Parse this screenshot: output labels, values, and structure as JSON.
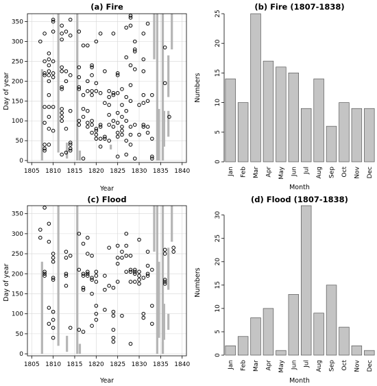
{
  "chart_data": [
    {
      "id": "fire-scatter",
      "type": "scatter",
      "title": "(a) Fire",
      "xlabel": "Year",
      "ylabel": "Day of year",
      "xlim": [
        1804,
        1841
      ],
      "ylim": [
        -5,
        370
      ],
      "xticks": [
        1805,
        1810,
        1815,
        1820,
        1825,
        1830,
        1835,
        1840
      ],
      "yticks": [
        0,
        50,
        100,
        150,
        200,
        250,
        300,
        350
      ],
      "grid": true,
      "points": [
        [
          1807,
          300
        ],
        [
          1808,
          320
        ],
        [
          1808,
          135
        ],
        [
          1808,
          95
        ],
        [
          1808,
          30
        ],
        [
          1808,
          25
        ],
        [
          1808,
          40
        ],
        [
          1809,
          270
        ],
        [
          1809,
          255
        ],
        [
          1809,
          240
        ],
        [
          1809,
          225
        ],
        [
          1809,
          215
        ],
        [
          1809,
          200
        ],
        [
          1809,
          165
        ],
        [
          1809,
          135
        ],
        [
          1809,
          110
        ],
        [
          1809,
          80
        ],
        [
          1809,
          40
        ],
        [
          1808,
          215
        ],
        [
          1808,
          250
        ],
        [
          1808,
          220
        ],
        [
          1810,
          355
        ],
        [
          1810,
          350
        ],
        [
          1810,
          325
        ],
        [
          1810,
          250
        ],
        [
          1810,
          220
        ],
        [
          1810,
          210
        ],
        [
          1810,
          135
        ],
        [
          1810,
          75
        ],
        [
          1812,
          340
        ],
        [
          1812,
          320
        ],
        [
          1812,
          305
        ],
        [
          1812,
          235
        ],
        [
          1812,
          225
        ],
        [
          1812,
          185
        ],
        [
          1812,
          180
        ],
        [
          1812,
          130
        ],
        [
          1812,
          120
        ],
        [
          1812,
          110
        ],
        [
          1812,
          100
        ],
        [
          1812,
          15
        ],
        [
          1813,
          325
        ],
        [
          1813,
          225
        ],
        [
          1813,
          200
        ],
        [
          1813,
          80
        ],
        [
          1813,
          20
        ],
        [
          1814,
          355
        ],
        [
          1814,
          315
        ],
        [
          1814,
          215
        ],
        [
          1814,
          125
        ],
        [
          1814,
          45
        ],
        [
          1814,
          40
        ],
        [
          1814,
          30
        ],
        [
          1814,
          25
        ],
        [
          1816,
          325
        ],
        [
          1816,
          235
        ],
        [
          1816,
          210
        ],
        [
          1816,
          185
        ],
        [
          1816,
          180
        ],
        [
          1816,
          100
        ],
        [
          1816,
          90
        ],
        [
          1817,
          290
        ],
        [
          1817,
          165
        ],
        [
          1817,
          130
        ],
        [
          1817,
          110
        ],
        [
          1817,
          5
        ],
        [
          1818,
          290
        ],
        [
          1818,
          200
        ],
        [
          1818,
          175
        ],
        [
          1818,
          125
        ],
        [
          1818,
          95
        ],
        [
          1818,
          85
        ],
        [
          1819,
          240
        ],
        [
          1819,
          235
        ],
        [
          1819,
          215
        ],
        [
          1819,
          175
        ],
        [
          1819,
          165
        ],
        [
          1819,
          100
        ],
        [
          1819,
          90
        ],
        [
          1819,
          70
        ],
        [
          1820,
          300
        ],
        [
          1820,
          195
        ],
        [
          1820,
          175
        ],
        [
          1820,
          80
        ],
        [
          1820,
          75
        ],
        [
          1820,
          65
        ],
        [
          1820,
          55
        ],
        [
          1821,
          320
        ],
        [
          1821,
          170
        ],
        [
          1821,
          90
        ],
        [
          1821,
          85
        ],
        [
          1821,
          55
        ],
        [
          1821,
          35
        ],
        [
          1822,
          225
        ],
        [
          1822,
          145
        ],
        [
          1822,
          60
        ],
        [
          1822,
          55
        ],
        [
          1823,
          175
        ],
        [
          1823,
          160
        ],
        [
          1823,
          140
        ],
        [
          1823,
          115
        ],
        [
          1823,
          90
        ],
        [
          1823,
          50
        ],
        [
          1824,
          320
        ],
        [
          1824,
          170
        ],
        [
          1824,
          165
        ],
        [
          1824,
          100
        ],
        [
          1824,
          85
        ],
        [
          1825,
          220
        ],
        [
          1825,
          215
        ],
        [
          1825,
          170
        ],
        [
          1825,
          120
        ],
        [
          1825,
          95
        ],
        [
          1825,
          70
        ],
        [
          1825,
          60
        ],
        [
          1825,
          10
        ],
        [
          1826,
          180
        ],
        [
          1826,
          140
        ],
        [
          1826,
          110
        ],
        [
          1826,
          85
        ],
        [
          1826,
          75
        ],
        [
          1826,
          65
        ],
        [
          1827,
          335
        ],
        [
          1827,
          260
        ],
        [
          1827,
          160
        ],
        [
          1827,
          125
        ],
        [
          1827,
          100
        ],
        [
          1827,
          50
        ],
        [
          1827,
          15
        ],
        [
          1828,
          365
        ],
        [
          1828,
          360
        ],
        [
          1828,
          340
        ],
        [
          1828,
          240
        ],
        [
          1828,
          190
        ],
        [
          1828,
          150
        ],
        [
          1828,
          85
        ],
        [
          1828,
          65
        ],
        [
          1828,
          40
        ],
        [
          1829,
          300
        ],
        [
          1829,
          280
        ],
        [
          1829,
          275
        ],
        [
          1829,
          230
        ],
        [
          1829,
          90
        ],
        [
          1829,
          5
        ],
        [
          1830,
          140
        ],
        [
          1830,
          65
        ],
        [
          1831,
          320
        ],
        [
          1831,
          255
        ],
        [
          1831,
          225
        ],
        [
          1831,
          165
        ],
        [
          1831,
          145
        ],
        [
          1831,
          90
        ],
        [
          1831,
          85
        ],
        [
          1832,
          345
        ],
        [
          1832,
          150
        ],
        [
          1832,
          85
        ],
        [
          1832,
          70
        ],
        [
          1833,
          165
        ],
        [
          1833,
          10
        ],
        [
          1833,
          5
        ],
        [
          1833,
          55
        ],
        [
          1836,
          285
        ],
        [
          1836,
          195
        ],
        [
          1837,
          110
        ]
      ],
      "bars": [
        [
          1807.4,
          0,
          230
        ],
        [
          1811.2,
          20,
          370
        ],
        [
          1813.2,
          5,
          45
        ],
        [
          1815.6,
          0,
          370
        ],
        [
          1816.2,
          0,
          25
        ],
        [
          1823.4,
          28,
          40
        ],
        [
          1833.5,
          255,
          370
        ],
        [
          1834.2,
          0,
          370
        ],
        [
          1834.6,
          0,
          130
        ],
        [
          1835.5,
          0,
          370
        ],
        [
          1835.5,
          0,
          30
        ],
        [
          1835.8,
          35,
          125
        ],
        [
          1836.8,
          160,
          265
        ],
        [
          1836.8,
          60,
          125
        ],
        [
          1837.6,
          280,
          370
        ]
      ]
    },
    {
      "id": "fire-bars",
      "type": "bar",
      "title": "(b) Fire (1807-1838)",
      "xlabel": "Month",
      "ylabel": "Numbers",
      "ylim": [
        0,
        25
      ],
      "yticks": [
        0,
        5,
        10,
        15,
        20,
        25
      ],
      "categories": [
        "Jan",
        "Feb",
        "Mar",
        "Apr",
        "May",
        "Jun",
        "Jul",
        "Aug",
        "Sep",
        "Oct",
        "Nov",
        "Dec"
      ],
      "values": [
        14,
        10,
        25,
        17,
        16,
        15,
        9,
        14,
        6,
        10,
        9,
        9
      ]
    },
    {
      "id": "flood-scatter",
      "type": "scatter",
      "title": "(c) Flood",
      "xlabel": "Year",
      "ylabel": "Day of year",
      "xlim": [
        1804,
        1841
      ],
      "ylim": [
        -5,
        370
      ],
      "xticks": [
        1805,
        1810,
        1815,
        1820,
        1825,
        1830,
        1835,
        1840
      ],
      "yticks": [
        0,
        50,
        100,
        150,
        200,
        250,
        300,
        350
      ],
      "grid": true,
      "points": [
        [
          1807,
          310
        ],
        [
          1807,
          290
        ],
        [
          1808,
          365
        ],
        [
          1808,
          205
        ],
        [
          1808,
          200
        ],
        [
          1808,
          195
        ],
        [
          1809,
          325
        ],
        [
          1809,
          280
        ],
        [
          1809,
          115
        ],
        [
          1809,
          75
        ],
        [
          1810,
          250
        ],
        [
          1810,
          240
        ],
        [
          1810,
          230
        ],
        [
          1810,
          190
        ],
        [
          1810,
          185
        ],
        [
          1810,
          105
        ],
        [
          1810,
          85
        ],
        [
          1810,
          65
        ],
        [
          1810,
          40
        ],
        [
          1813,
          255
        ],
        [
          1813,
          240
        ],
        [
          1813,
          200
        ],
        [
          1813,
          195
        ],
        [
          1813,
          170
        ],
        [
          1814,
          245
        ],
        [
          1814,
          65
        ],
        [
          1816,
          300
        ],
        [
          1816,
          210
        ],
        [
          1816,
          60
        ],
        [
          1817,
          275
        ],
        [
          1817,
          200
        ],
        [
          1817,
          195
        ],
        [
          1817,
          165
        ],
        [
          1817,
          160
        ],
        [
          1817,
          55
        ],
        [
          1818,
          290
        ],
        [
          1818,
          250
        ],
        [
          1818,
          205
        ],
        [
          1818,
          200
        ],
        [
          1818,
          195
        ],
        [
          1819,
          245
        ],
        [
          1819,
          190
        ],
        [
          1819,
          185
        ],
        [
          1819,
          150
        ],
        [
          1819,
          70
        ],
        [
          1820,
          205
        ],
        [
          1820,
          195
        ],
        [
          1820,
          180
        ],
        [
          1820,
          120
        ],
        [
          1820,
          100
        ],
        [
          1820,
          85
        ],
        [
          1822,
          195
        ],
        [
          1822,
          160
        ],
        [
          1822,
          110
        ],
        [
          1823,
          265
        ],
        [
          1823,
          170
        ],
        [
          1824,
          165
        ],
        [
          1824,
          105
        ],
        [
          1824,
          95
        ],
        [
          1824,
          60
        ],
        [
          1824,
          40
        ],
        [
          1824,
          30
        ],
        [
          1825,
          270
        ],
        [
          1825,
          240
        ],
        [
          1825,
          225
        ],
        [
          1825,
          180
        ],
        [
          1826,
          255
        ],
        [
          1826,
          240
        ],
        [
          1826,
          95
        ],
        [
          1827,
          300
        ],
        [
          1827,
          270
        ],
        [
          1827,
          245
        ],
        [
          1827,
          205
        ],
        [
          1828,
          245
        ],
        [
          1828,
          210
        ],
        [
          1828,
          205
        ],
        [
          1828,
          180
        ],
        [
          1828,
          25
        ],
        [
          1829,
          210
        ],
        [
          1829,
          205
        ],
        [
          1829,
          200
        ],
        [
          1829,
          180
        ],
        [
          1830,
          285
        ],
        [
          1830,
          205
        ],
        [
          1830,
          195
        ],
        [
          1830,
          185
        ],
        [
          1830,
          175
        ],
        [
          1831,
          190
        ],
        [
          1831,
          100
        ],
        [
          1831,
          90
        ],
        [
          1832,
          255
        ],
        [
          1832,
          220
        ],
        [
          1832,
          200
        ],
        [
          1832,
          195
        ],
        [
          1833,
          210
        ],
        [
          1833,
          120
        ],
        [
          1833,
          75
        ],
        [
          1836,
          260
        ],
        [
          1836,
          250
        ],
        [
          1836,
          185
        ],
        [
          1836,
          180
        ],
        [
          1836,
          175
        ],
        [
          1838,
          265
        ],
        [
          1838,
          255
        ]
      ],
      "bars": [
        [
          1807.4,
          0,
          230
        ],
        [
          1811.2,
          20,
          370
        ],
        [
          1813.2,
          5,
          45
        ],
        [
          1815.6,
          0,
          370
        ],
        [
          1816.2,
          0,
          25
        ],
        [
          1833.5,
          255,
          370
        ],
        [
          1834.2,
          0,
          370
        ],
        [
          1834.6,
          40,
          230
        ],
        [
          1835.5,
          0,
          370
        ],
        [
          1835.5,
          0,
          30
        ],
        [
          1835.8,
          35,
          125
        ],
        [
          1836.8,
          160,
          265
        ],
        [
          1836.8,
          60,
          100
        ],
        [
          1837.6,
          280,
          370
        ]
      ]
    },
    {
      "id": "flood-bars",
      "type": "bar",
      "title": "(d) Flood (1807-1838)",
      "xlabel": "Month",
      "ylabel": "Numbers",
      "ylim": [
        0,
        32
      ],
      "yticks": [
        0,
        5,
        10,
        15,
        20,
        25,
        30
      ],
      "categories": [
        "Jan",
        "Feb",
        "Mar",
        "Apr",
        "May",
        "Jun",
        "Jul",
        "Aug",
        "Sep",
        "Oct",
        "Nov",
        "Dec"
      ],
      "values": [
        2,
        4,
        8,
        10,
        1,
        13,
        32,
        9,
        15,
        6,
        2,
        1
      ]
    }
  ]
}
